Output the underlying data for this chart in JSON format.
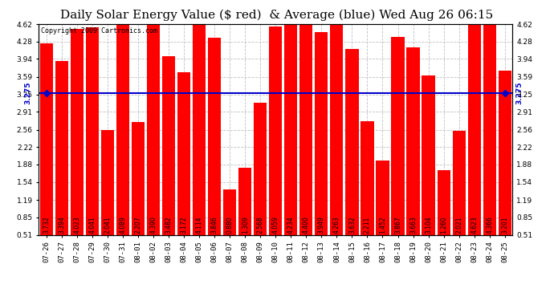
{
  "title": "Daily Solar Energy Value ($ red)  & Average (blue) Wed Aug 26 06:15",
  "copyright": "Copyright 2009 Cartronics.com",
  "average": 3.275,
  "bar_color": "#ff0000",
  "avg_line_color": "#0000cc",
  "background_color": "#ffffff",
  "plot_bg_color": "#ffffff",
  "grid_color": "#c0c0c0",
  "categories": [
    "07-26",
    "07-27",
    "07-28",
    "07-29",
    "07-30",
    "07-31",
    "08-01",
    "08-02",
    "08-03",
    "08-04",
    "08-05",
    "08-06",
    "08-07",
    "08-08",
    "08-09",
    "08-10",
    "08-11",
    "08-12",
    "08-13",
    "08-14",
    "08-15",
    "08-16",
    "08-17",
    "08-18",
    "08-19",
    "08-20",
    "08-21",
    "08-22",
    "08-23",
    "08-24",
    "08-25"
  ],
  "values": [
    3.732,
    3.394,
    4.023,
    4.041,
    2.041,
    4.089,
    2.207,
    4.39,
    3.482,
    3.172,
    4.114,
    3.846,
    0.88,
    1.309,
    2.568,
    4.059,
    4.234,
    4.4,
    3.949,
    4.263,
    3.632,
    2.211,
    1.452,
    3.867,
    3.663,
    3.104,
    1.26,
    2.021,
    4.623,
    4.366,
    3.201
  ],
  "yticks": [
    0.51,
    0.85,
    1.19,
    1.54,
    1.88,
    2.22,
    2.56,
    2.91,
    3.25,
    3.59,
    3.94,
    4.28,
    4.62
  ],
  "ylim": [
    0.51,
    4.62
  ],
  "title_fontsize": 11,
  "tick_fontsize": 6.5,
  "bar_label_fontsize": 5.5
}
